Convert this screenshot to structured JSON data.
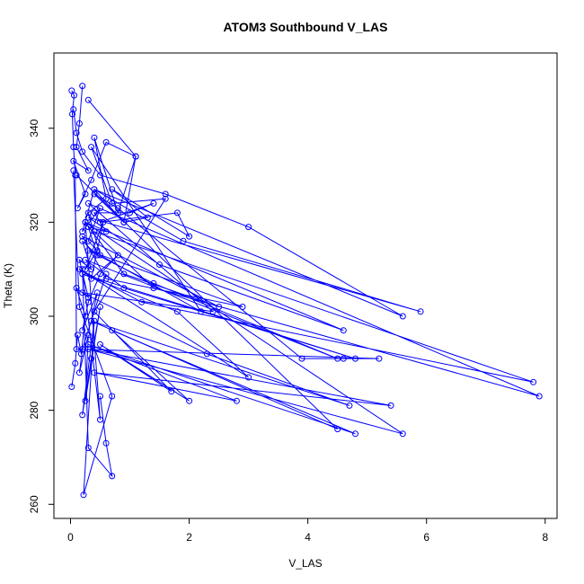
{
  "chart_data": {
    "type": "line",
    "title": "ATOM3 Southbound V_LAS",
    "xlabel": "V_LAS",
    "ylabel": "Theta (K)",
    "xlim": [
      -0.28,
      8.2
    ],
    "ylim": [
      257,
      356
    ],
    "xticks": [
      0,
      2,
      4,
      6,
      8
    ],
    "yticks": [
      260,
      280,
      300,
      320,
      340
    ],
    "grid": false,
    "legend": "none",
    "series_color": "#0000ff",
    "markers": "open-circle",
    "series": [
      {
        "x": [
          0.2,
          0.15,
          0.1,
          0.3,
          0.05,
          0.25,
          0.12,
          0.35,
          0.6,
          1.1,
          0.9,
          0.4,
          0.2,
          0.5,
          0.3,
          0.45,
          0.25,
          0.55,
          0.35,
          0.8,
          0.5,
          0.3,
          0.2,
          0.45,
          0.35,
          0.6,
          0.2,
          0.15,
          0.3,
          0.25,
          0.5,
          0.35,
          0.2,
          0.4,
          0.22,
          0.7,
          0.15,
          0.05
        ],
        "y": [
          349,
          341,
          336,
          331,
          333,
          326,
          323,
          329,
          337,
          334,
          320,
          327,
          318,
          323,
          316,
          314,
          310,
          320,
          308,
          313,
          309,
          303,
          297,
          305,
          299,
          309,
          293,
          288,
          296,
          282,
          302,
          291,
          279,
          299,
          262,
          283,
          302,
          331
        ]
      },
      {
        "x": [
          0.05,
          0.1,
          0.2,
          0.5,
          1.6,
          3.0,
          5.6,
          0.4,
          1.9,
          5.9,
          0.3,
          1.5,
          4.6,
          0.25,
          0.9,
          2.5,
          0.2,
          0.6,
          2.9,
          0.3,
          1.4,
          4.5,
          0.25,
          0.9,
          4.8,
          0.2,
          1.8,
          3.0,
          0.15,
          1.2,
          7.8,
          0.4,
          1.4,
          7.9,
          0.3,
          2.4,
          0.2,
          2.3,
          4.7,
          0.35,
          4.5,
          0.1
        ],
        "y": [
          344,
          339,
          335,
          330,
          326,
          319,
          300,
          327,
          316,
          301,
          321,
          311,
          297,
          320,
          309,
          302,
          317,
          308,
          302,
          314,
          307,
          291,
          312,
          306,
          291,
          309,
          301,
          287,
          310,
          303,
          286,
          318,
          306,
          283,
          324,
          301,
          305,
          292,
          281,
          299,
          276,
          330
        ]
      },
      {
        "x": [
          0.3,
          1.1,
          0.8,
          0.4,
          0.6,
          0.3,
          0.5,
          2.2,
          0.35,
          0.7,
          1.6,
          0.4,
          1.7,
          0.5,
          2.0,
          0.7,
          4.8,
          0.3,
          2.8,
          0.4,
          5.4,
          0.3,
          5.6,
          0.25,
          0.5,
          0.2,
          0.3,
          0.7,
          0.6,
          0.5
        ],
        "y": [
          346,
          334,
          322,
          338,
          325,
          322,
          313,
          301,
          336,
          324,
          325,
          301,
          284,
          294,
          282,
          297,
          275,
          294,
          282,
          288,
          281,
          293,
          275,
          320,
          278,
          310,
          272,
          266,
          273,
          283
        ]
      },
      {
        "x": [
          0.02,
          0.08,
          0.12,
          0.18,
          0.25,
          0.1,
          0.3,
          0.15,
          0.35,
          0.2,
          0.45,
          0.3,
          0.6,
          0.4,
          1.0,
          1.4,
          0.5,
          1.8,
          2.0,
          0.7,
          1.3,
          0.9,
          0.4,
          0.8,
          3.9,
          4.6,
          5.2,
          0.1,
          0.08,
          0.05,
          0.03,
          0.06,
          0.02
        ],
        "y": [
          285,
          290,
          296,
          292,
          300,
          306,
          304,
          312,
          310,
          316,
          313,
          319,
          318,
          322,
          322,
          324,
          320,
          322,
          317,
          327,
          321,
          320,
          326,
          323,
          291,
          291,
          291,
          293,
          330,
          336,
          343,
          347,
          348
        ]
      }
    ]
  }
}
